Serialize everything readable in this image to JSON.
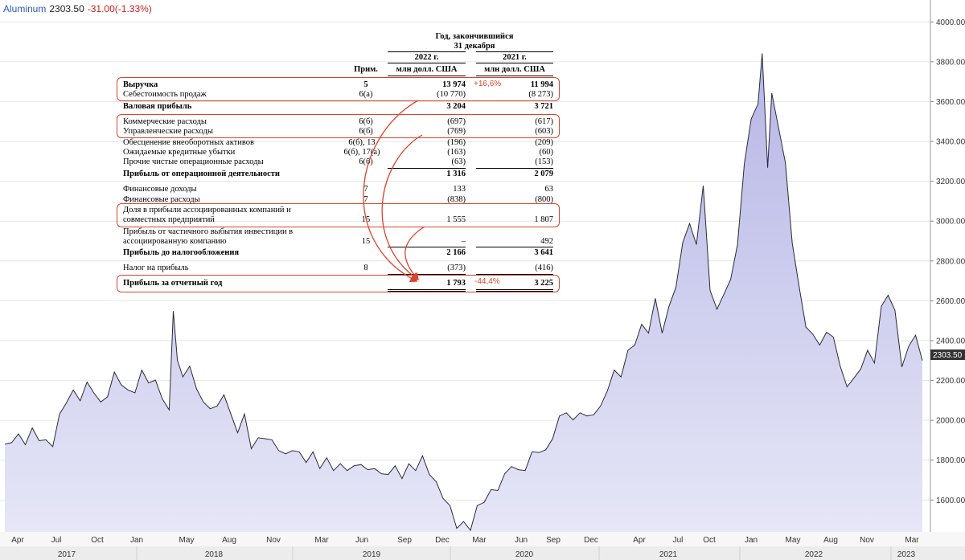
{
  "header": {
    "symbol": "Aluminum",
    "price": "2303.50",
    "change": "-31.00(-1.33%)"
  },
  "chart_data": {
    "type": "area",
    "title": "Aluminum",
    "y_ticks": [
      1600,
      1800,
      2000,
      2200,
      2400,
      2600,
      2800,
      3000,
      3200,
      3400,
      3600,
      3800,
      4000
    ],
    "y_tick_labels": [
      "1600.00",
      "1800.00",
      "2000.00",
      "2200.00",
      "2400.00",
      "2600.00",
      "2800.00",
      "3000.00",
      "3200.00",
      "3400.00",
      "3600.00",
      "3800.00",
      "4000.00"
    ],
    "ylim": [
      1440,
      4110
    ],
    "last_value_label": "2303.50",
    "month_labels": [
      "Apr",
      "Jul",
      "Oct",
      "Jan",
      "May",
      "Aug",
      "Nov",
      "Mar",
      "Jun",
      "Sep",
      "Dec",
      "Mar",
      "Jun",
      "Sep",
      "Dec",
      "Apr",
      "Jul",
      "Oct",
      "Jan",
      "May",
      "Aug",
      "Nov",
      "Mar"
    ],
    "year_labels": [
      "2017",
      "2018",
      "2019",
      "2020",
      "2021",
      "2022",
      "2023"
    ],
    "x_period": "2017-03 .. 2023-03",
    "series": [
      {
        "points": [
          [
            0,
            1880
          ],
          [
            0.5,
            1900
          ],
          [
            1,
            1920
          ],
          [
            1.5,
            1890
          ],
          [
            2,
            1950
          ],
          [
            2.5,
            1910
          ],
          [
            3,
            1890
          ],
          [
            3.5,
            1880
          ],
          [
            4,
            2020
          ],
          [
            4.5,
            2100
          ],
          [
            5,
            2140
          ],
          [
            5.5,
            2110
          ],
          [
            6,
            2180
          ],
          [
            6.5,
            2150
          ],
          [
            7,
            2080
          ],
          [
            7.5,
            2130
          ],
          [
            8,
            2230
          ],
          [
            8.5,
            2190
          ],
          [
            9,
            2140
          ],
          [
            9.5,
            2150
          ],
          [
            10,
            2240
          ],
          [
            10.5,
            2200
          ],
          [
            11,
            2190
          ],
          [
            11.5,
            2120
          ],
          [
            12,
            2040
          ],
          [
            12.3,
            2560
          ],
          [
            12.6,
            2290
          ],
          [
            13,
            2230
          ],
          [
            13.5,
            2260
          ],
          [
            14,
            2170
          ],
          [
            14.5,
            2080
          ],
          [
            15,
            2070
          ],
          [
            15.5,
            2060
          ],
          [
            16,
            2140
          ],
          [
            16.5,
            2020
          ],
          [
            17,
            1950
          ],
          [
            17.5,
            2020
          ],
          [
            18,
            1870
          ],
          [
            18.5,
            1900
          ],
          [
            19,
            1920
          ],
          [
            19.5,
            1890
          ],
          [
            20,
            1860
          ],
          [
            20.5,
            1820
          ],
          [
            21,
            1860
          ],
          [
            21.5,
            1830
          ],
          [
            22,
            1800
          ],
          [
            22.5,
            1830
          ],
          [
            23,
            1770
          ],
          [
            23.5,
            1800
          ],
          [
            24,
            1760
          ],
          [
            24.5,
            1770
          ],
          [
            25,
            1760
          ],
          [
            25.5,
            1760
          ],
          [
            26,
            1790
          ],
          [
            26.5,
            1740
          ],
          [
            27,
            1770
          ],
          [
            27.5,
            1720
          ],
          [
            28,
            1740
          ],
          [
            28.5,
            1760
          ],
          [
            29,
            1720
          ],
          [
            29.5,
            1770
          ],
          [
            30,
            1760
          ],
          [
            30.5,
            1810
          ],
          [
            31,
            1740
          ],
          [
            31.5,
            1680
          ],
          [
            32,
            1620
          ],
          [
            32.5,
            1560
          ],
          [
            33,
            1470
          ],
          [
            33.5,
            1480
          ],
          [
            34,
            1460
          ],
          [
            34.5,
            1560
          ],
          [
            35,
            1600
          ],
          [
            35.5,
            1640
          ],
          [
            36,
            1660
          ],
          [
            36.5,
            1720
          ],
          [
            37,
            1780
          ],
          [
            37.5,
            1740
          ],
          [
            38,
            1760
          ],
          [
            38.5,
            1830
          ],
          [
            39,
            1850
          ],
          [
            39.5,
            1840
          ],
          [
            40,
            1920
          ],
          [
            40.5,
            2010
          ],
          [
            41,
            2050
          ],
          [
            41.5,
            1990
          ],
          [
            42,
            2050
          ],
          [
            42.5,
            2010
          ],
          [
            43,
            2040
          ],
          [
            43.5,
            2060
          ],
          [
            44,
            2160
          ],
          [
            44.5,
            2240
          ],
          [
            45,
            2230
          ],
          [
            45.5,
            2340
          ],
          [
            46,
            2390
          ],
          [
            46.5,
            2470
          ],
          [
            47,
            2450
          ],
          [
            47.5,
            2600
          ],
          [
            48,
            2450
          ],
          [
            48.5,
            2560
          ],
          [
            49,
            2680
          ],
          [
            49.5,
            2880
          ],
          [
            50,
            3000
          ],
          [
            50.5,
            2870
          ],
          [
            51,
            3190
          ],
          [
            51.5,
            2640
          ],
          [
            52,
            2570
          ],
          [
            52.5,
            2620
          ],
          [
            53,
            2720
          ],
          [
            53.5,
            2870
          ],
          [
            54,
            3300
          ],
          [
            54.5,
            3500
          ],
          [
            55,
            3600
          ],
          [
            55.3,
            3830
          ],
          [
            55.7,
            3280
          ],
          [
            56,
            3630
          ],
          [
            56.5,
            3480
          ],
          [
            57,
            3280
          ],
          [
            57.5,
            2900
          ],
          [
            58,
            2660
          ],
          [
            58.5,
            2480
          ],
          [
            59,
            2420
          ],
          [
            59.5,
            2390
          ],
          [
            60,
            2430
          ],
          [
            60.5,
            2430
          ],
          [
            61,
            2260
          ],
          [
            61.5,
            2180
          ],
          [
            62,
            2200
          ],
          [
            62.5,
            2270
          ],
          [
            63,
            2340
          ],
          [
            63.5,
            2300
          ],
          [
            64,
            2560
          ],
          [
            64.5,
            2640
          ],
          [
            65,
            2540
          ],
          [
            65.5,
            2280
          ],
          [
            66,
            2360
          ],
          [
            66.5,
            2440
          ],
          [
            67,
            2300
          ]
        ],
        "x_scale": "month index from Mar 2017 (0) to Mar 2023 (72)"
      }
    ]
  },
  "table": {
    "heading_line1": "Год, закончившийся",
    "heading_line2": "31 декабря",
    "col_2022_year": "2022 г.",
    "col_2021_year": "2021 г.",
    "col_note": "Прим.",
    "col_2022_unit": "млн долл. США",
    "col_2021_unit": "млн долл. США",
    "rows": [
      {
        "label": "Выручка",
        "note": "5",
        "v2022": "13 974",
        "v2021": "11 994"
      },
      {
        "label": "Себестоимость продаж",
        "note": "6(а)",
        "v2022": "(10 770)",
        "v2021": "(8 273)"
      },
      {
        "label": "Валовая прибыль",
        "note": "",
        "v2022": "3 204",
        "v2021": "3 721"
      },
      {
        "label": "Коммерческие расходы",
        "note": "6(б)",
        "v2022": "(697)",
        "v2021": "(617)"
      },
      {
        "label": "Управленческие расходы",
        "note": "6(б)",
        "v2022": "(769)",
        "v2021": "(603)"
      },
      {
        "label": "Обесценение внеоборотных активов",
        "note": "6(б), 13",
        "v2022": "(196)",
        "v2021": "(209)"
      },
      {
        "label": "Ожидаемые кредитные убытки",
        "note": "6(б), 17(а)",
        "v2022": "(163)",
        "v2021": "(60)"
      },
      {
        "label": "Прочие чистые операционные расходы",
        "note": "6(б)",
        "v2022": "(63)",
        "v2021": "(153)"
      },
      {
        "label": "Прибыль от операционной деятельности",
        "note": "",
        "v2022": "1 316",
        "v2021": "2 079"
      },
      {
        "label": "Финансовые доходы",
        "note": "7",
        "v2022": "133",
        "v2021": "63"
      },
      {
        "label": "Финансовые расходы",
        "note": "7",
        "v2022": "(838)",
        "v2021": "(800)"
      },
      {
        "label": "Доля в прибыли ассоциированных компаний и",
        "label2": "совместных предприятий",
        "note": "15",
        "v2022": "1 555",
        "v2021": "1 807"
      },
      {
        "label": "Прибыль от частичного выбытия инвестиции в",
        "label2": "ассоциированную компанию",
        "note": "15",
        "v2022": "–",
        "v2021": "492"
      },
      {
        "label": "Прибыль до налогообложения",
        "note": "",
        "v2022": "2 166",
        "v2021": "3 641"
      },
      {
        "label": "Налог на прибыль",
        "note": "8",
        "v2022": "(373)",
        "v2021": "(416)"
      },
      {
        "label": "Прибыль за отчетный год",
        "note": "",
        "v2022": "1 793",
        "v2021": "3 225"
      }
    ],
    "pct_revenue": "+16,6%",
    "pct_profit": "-44,4%"
  }
}
